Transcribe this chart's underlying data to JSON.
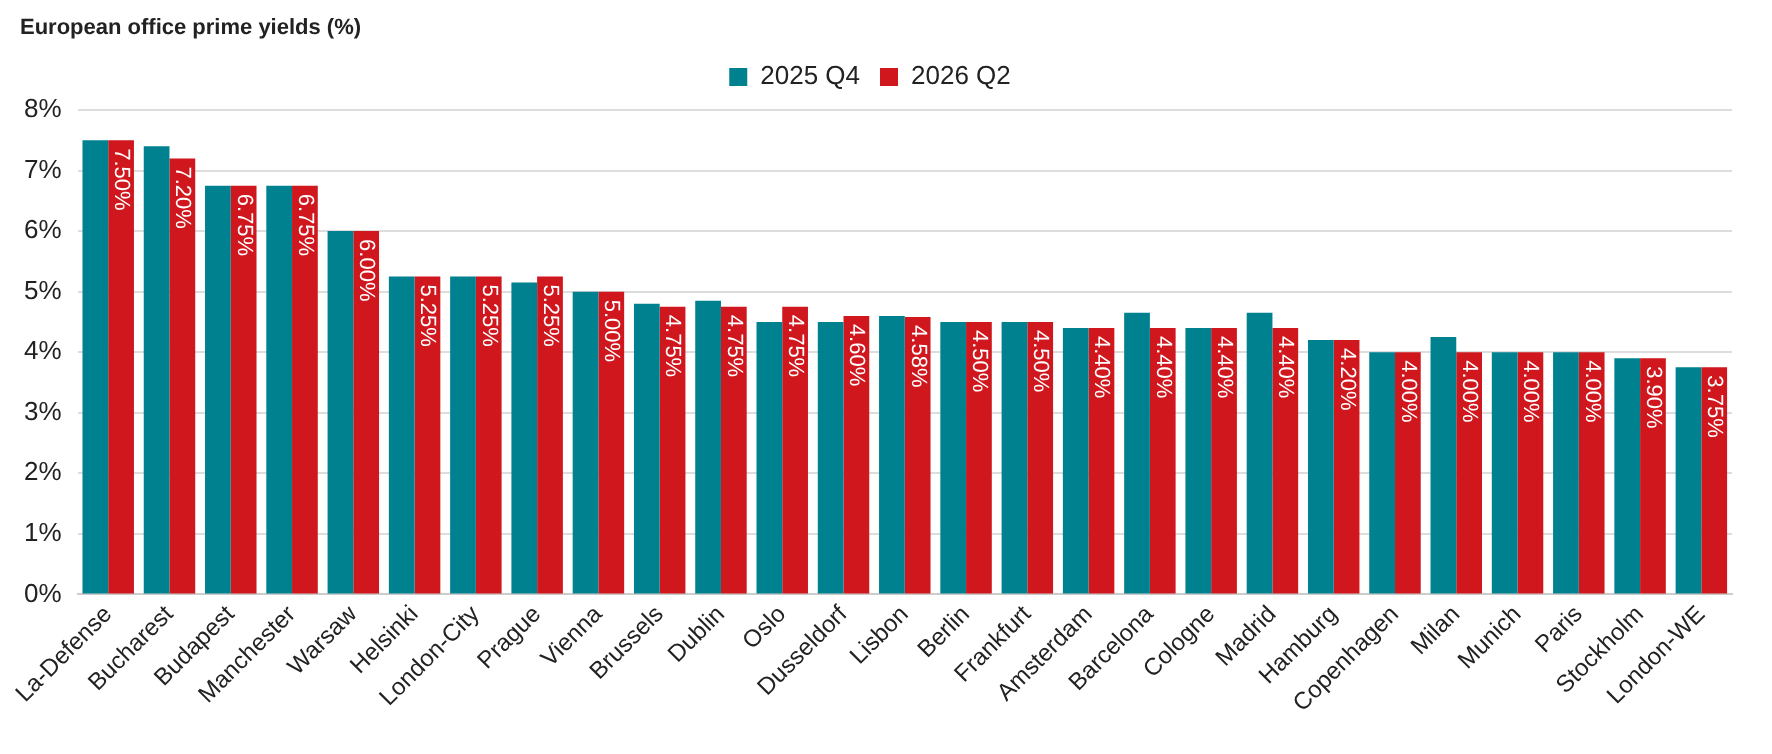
{
  "chart_data": {
    "type": "bar",
    "title": "European office prime yields (%)",
    "categories": [
      "La-Defense",
      "Bucharest",
      "Budapest",
      "Manchester",
      "Warsaw",
      "Helsinki",
      "London-City",
      "Prague",
      "Vienna",
      "Brussels",
      "Dublin",
      "Oslo",
      "Dusseldorf",
      "Lisbon",
      "Berlin",
      "Frankfurt",
      "Amsterdam",
      "Barcelona",
      "Cologne",
      "Madrid",
      "Hamburg",
      "Copenhagen",
      "Milan",
      "Munich",
      "Paris",
      "Stockholm",
      "London-WE"
    ],
    "series": [
      {
        "name": "2025 Q4",
        "color": "#00818f",
        "values": [
          7.5,
          7.4,
          6.75,
          6.75,
          6.0,
          5.25,
          5.25,
          5.15,
          5.0,
          4.8,
          4.85,
          4.5,
          4.5,
          4.6,
          4.5,
          4.5,
          4.4,
          4.65,
          4.4,
          4.65,
          4.2,
          4.0,
          4.25,
          4.0,
          4.0,
          3.9,
          3.75
        ]
      },
      {
        "name": "2026 Q2",
        "color": "#d0171e",
        "values": [
          7.5,
          7.2,
          6.75,
          6.75,
          6.0,
          5.25,
          5.25,
          5.25,
          5.0,
          4.75,
          4.75,
          4.75,
          4.6,
          4.58,
          4.5,
          4.5,
          4.4,
          4.4,
          4.4,
          4.4,
          4.2,
          4.0,
          4.0,
          4.0,
          4.0,
          3.9,
          3.75
        ],
        "value_labels": [
          "7.50%",
          "7.20%",
          "6.75%",
          "6.75%",
          "6.00%",
          "5.25%",
          "5.25%",
          "5.25%",
          "5.00%",
          "4.75%",
          "4.75%",
          "4.75%",
          "4.60%",
          "4.58%",
          "4.50%",
          "4.50%",
          "4.40%",
          "4.40%",
          "4.40%",
          "4.40%",
          "4.20%",
          "4.00%",
          "4.00%",
          "4.00%",
          "4.00%",
          "3.90%",
          "3.75%"
        ]
      }
    ],
    "ylim": [
      0,
      8
    ],
    "yticks": [
      {
        "value": 0,
        "label": "0%"
      },
      {
        "value": 1,
        "label": "1%"
      },
      {
        "value": 2,
        "label": "2%"
      },
      {
        "value": 3,
        "label": "3%"
      },
      {
        "value": 4,
        "label": "4%"
      },
      {
        "value": 5,
        "label": "5%"
      },
      {
        "value": 6,
        "label": "6%"
      },
      {
        "value": 7,
        "label": "7%"
      },
      {
        "value": 8,
        "label": "8%"
      }
    ],
    "grid": "y",
    "legend": "top"
  }
}
